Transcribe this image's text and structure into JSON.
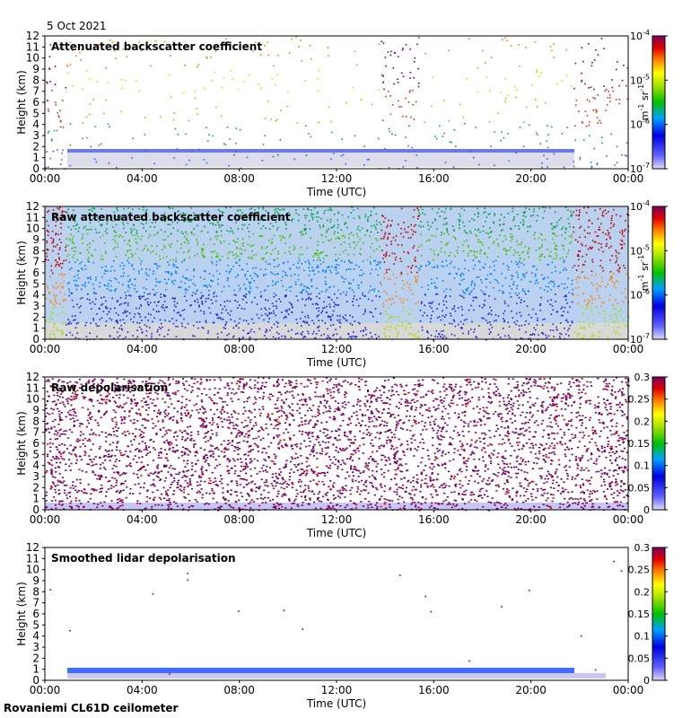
{
  "date_label": "5 Oct 2021",
  "station_label": "Rovaniemi CL61D ceilometer",
  "chart_data": [
    {
      "type": "heatmap",
      "title": "Attenuated backscatter coefficient",
      "xlabel": "Time (UTC)",
      "ylabel": "Height (km)",
      "xticks": [
        "00:00",
        "04:00",
        "08:00",
        "12:00",
        "16:00",
        "20:00",
        "00:00"
      ],
      "yticks": [
        "0",
        "1",
        "2",
        "3",
        "4",
        "5",
        "6",
        "7",
        "8",
        "9",
        "10",
        "11",
        "12"
      ],
      "ylim": [
        0,
        12
      ],
      "colorbar": {
        "scale": "log",
        "range": [
          1e-07,
          0.0001
        ],
        "ticks": [
          "10-7",
          "10-6",
          "10-5",
          "10-4"
        ],
        "unit": "m-1 sr-1"
      }
    },
    {
      "type": "heatmap",
      "title": "Raw attenuated backscatter coefficient",
      "xlabel": "Time (UTC)",
      "ylabel": "Height (km)",
      "xticks": [
        "00:00",
        "04:00",
        "08:00",
        "12:00",
        "16:00",
        "20:00",
        "00:00"
      ],
      "yticks": [
        "0",
        "1",
        "2",
        "3",
        "4",
        "5",
        "6",
        "7",
        "8",
        "9",
        "10",
        "11",
        "12"
      ],
      "ylim": [
        0,
        12
      ],
      "colorbar": {
        "scale": "log",
        "range": [
          1e-07,
          0.0001
        ],
        "ticks": [
          "10-7",
          "10-6",
          "10-5",
          "10-4"
        ],
        "unit": "m-1 sr-1"
      }
    },
    {
      "type": "heatmap",
      "title": "Raw depolarisation",
      "xlabel": "Time (UTC)",
      "ylabel": "Height (km)",
      "xticks": [
        "00:00",
        "04:00",
        "08:00",
        "12:00",
        "16:00",
        "20:00",
        "00:00"
      ],
      "yticks": [
        "0",
        "1",
        "2",
        "3",
        "4",
        "5",
        "6",
        "7",
        "8",
        "9",
        "10",
        "11",
        "12"
      ],
      "ylim": [
        0,
        12
      ],
      "colorbar": {
        "scale": "linear",
        "range": [
          0,
          0.3
        ],
        "ticks": [
          "0",
          "0.05",
          "0.1",
          "0.15",
          "0.2",
          "0.25",
          "0.3"
        ]
      }
    },
    {
      "type": "heatmap",
      "title": "Smoothed lidar depolarisation",
      "xlabel": "Time (UTC)",
      "ylabel": "Height (km)",
      "xticks": [
        "00:00",
        "04:00",
        "08:00",
        "12:00",
        "16:00",
        "20:00",
        "00:00"
      ],
      "yticks": [
        "0",
        "1",
        "2",
        "3",
        "4",
        "5",
        "6",
        "7",
        "8",
        "9",
        "10",
        "11",
        "12"
      ],
      "ylim": [
        0,
        12
      ],
      "colorbar": {
        "scale": "linear",
        "range": [
          0,
          0.3
        ],
        "ticks": [
          "0",
          "0.05",
          "0.1",
          "0.15",
          "0.2",
          "0.25",
          "0.3"
        ]
      }
    }
  ]
}
